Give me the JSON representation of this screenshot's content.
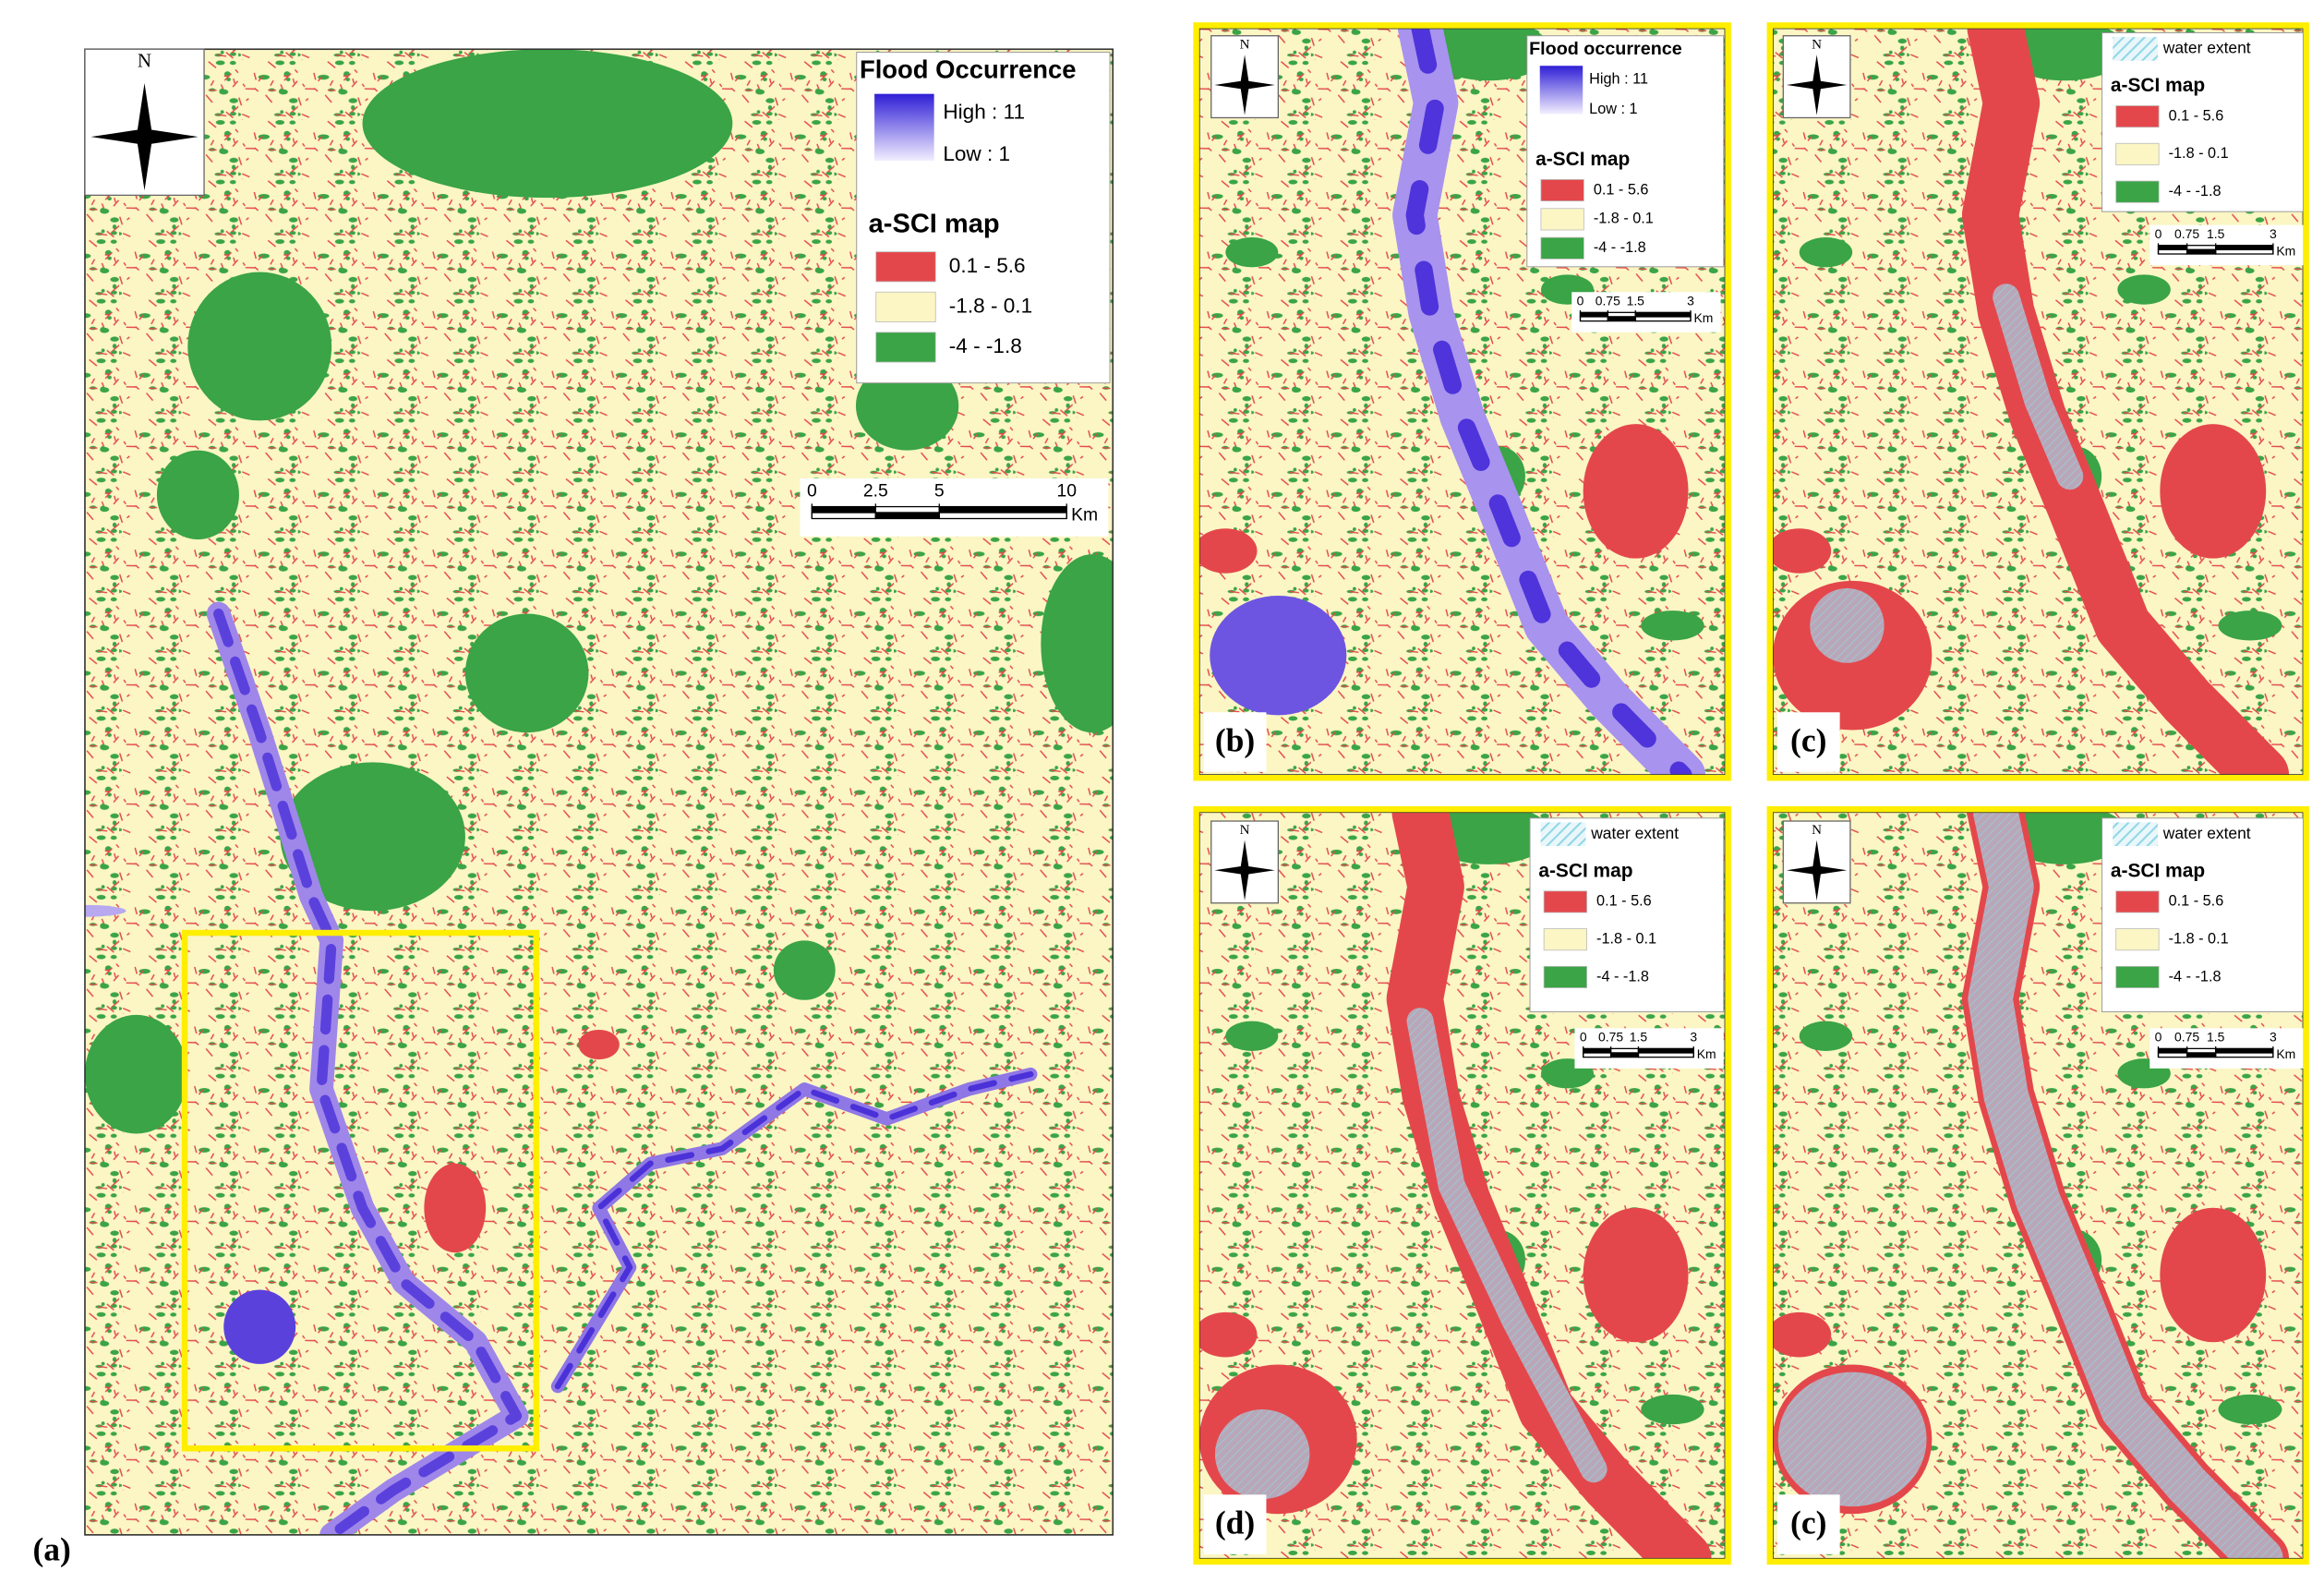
{
  "panels": [
    {
      "label": "(a)",
      "north": "N",
      "legend": {
        "flood": {
          "title": "Flood Occurrence",
          "high": "High : 11",
          "low": "Low : 1",
          "colors": [
            "#2f1fd6",
            "#f3efff"
          ]
        },
        "sci": {
          "title": "a-SCI map",
          "classes": [
            "0.1 - 5.6",
            "-1.8 - 0.1",
            "-4 - -1.8"
          ],
          "colors": [
            "#e4474b",
            "#fbf6c4",
            "#3aa446"
          ]
        }
      },
      "scale": {
        "ticks": [
          0,
          2.5,
          5,
          10
        ],
        "unit": "Km"
      }
    },
    {
      "label": "(b)",
      "north": "N",
      "legend": {
        "flood": {
          "title": "Flood occurrence",
          "high": "High : 11",
          "low": "Low : 1",
          "colors": [
            "#2f1fd6",
            "#f3efff"
          ]
        },
        "sci": {
          "title": "a-SCI map",
          "classes": [
            "0.1 - 5.6",
            "-1.8 - 0.1",
            "-4 - -1.8"
          ],
          "colors": [
            "#e4474b",
            "#fbf6c4",
            "#3aa446"
          ]
        }
      },
      "scale": {
        "ticks": [
          0,
          0.75,
          1.5,
          3
        ],
        "unit": "Km"
      }
    },
    {
      "label": "(c)",
      "north": "N",
      "legend": {
        "water": {
          "label": "water extent",
          "color": "#8fd6e6"
        },
        "sci": {
          "title": "a-SCI map",
          "classes": [
            "0.1 - 5.6",
            "-1.8 - 0.1",
            "-4 - -1.8"
          ],
          "colors": [
            "#e4474b",
            "#fbf6c4",
            "#3aa446"
          ]
        }
      },
      "scale": {
        "ticks": [
          0,
          0.75,
          1.5,
          3
        ],
        "unit": "Km"
      }
    },
    {
      "label": "(d)",
      "north": "N",
      "legend": {
        "water": {
          "label": "water extent",
          "color": "#8fd6e6"
        },
        "sci": {
          "title": "a-SCI map",
          "classes": [
            "0.1 - 5.6",
            "-1.8 - 0.1",
            "-4 - -1.8"
          ],
          "colors": [
            "#e4474b",
            "#fbf6c4",
            "#3aa446"
          ]
        }
      },
      "scale": {
        "ticks": [
          0,
          0.75,
          1.5,
          3
        ],
        "unit": "Km"
      }
    },
    {
      "label": "(c)",
      "north": "N",
      "legend": {
        "water": {
          "label": "water extent",
          "color": "#8fd6e6"
        },
        "sci": {
          "title": "a-SCI map",
          "classes": [
            "0.1 - 5.6",
            "-1.8 - 0.1",
            "-4 - -1.8"
          ],
          "colors": [
            "#e4474b",
            "#fbf6c4",
            "#3aa446"
          ]
        }
      },
      "scale": {
        "ticks": [
          0,
          0.75,
          1.5,
          3
        ],
        "unit": "Km"
      }
    }
  ]
}
